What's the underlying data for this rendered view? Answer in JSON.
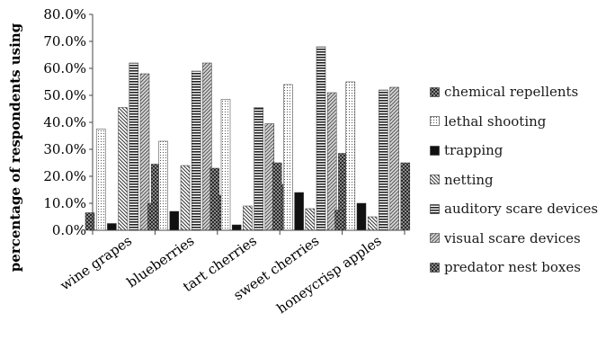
{
  "chart_data": {
    "type": "bar",
    "title": "",
    "xlabel": "",
    "ylabel": "percentage of respondents using",
    "ylim": [
      0,
      80
    ],
    "y_tick_labels": [
      "0.0%",
      "10.0%",
      "20.0%",
      "30.0%",
      "40.0%",
      "50.0%",
      "60.0%",
      "70.0%",
      "80.0%"
    ],
    "grid": false,
    "legend_position": "right",
    "categories": [
      "wine grapes",
      "blueberries",
      "tart cherries",
      "sweet cherries",
      "honeycrisp apples"
    ],
    "series": [
      {
        "name": "chemical repellents",
        "pattern": "checker-dark",
        "values": [
          6.5,
          10.0,
          23.0,
          25.0,
          7.5
        ]
      },
      {
        "name": "lethal shooting",
        "pattern": "dotted-light",
        "values": [
          37.5,
          33.0,
          48.5,
          54.0,
          55.0
        ]
      },
      {
        "name": "trapping",
        "pattern": "solid-black",
        "values": [
          2.5,
          7.0,
          2.0,
          14.0,
          10.0
        ]
      },
      {
        "name": "netting",
        "pattern": "diagonal-lines",
        "values": [
          45.5,
          24.0,
          9.0,
          8.0,
          5.0
        ]
      },
      {
        "name": "auditory scare devices",
        "pattern": "horizontal-stripes",
        "values": [
          62.0,
          59.0,
          45.5,
          68.0,
          52.0
        ]
      },
      {
        "name": "visual scare devices",
        "pattern": "diagonal-hatch",
        "values": [
          58.0,
          62.0,
          39.5,
          51.0,
          53.0
        ]
      },
      {
        "name": "predator nest boxes",
        "pattern": "checker-dark",
        "values": [
          24.5,
          13.0,
          17.0,
          28.5,
          25.0
        ]
      }
    ]
  }
}
